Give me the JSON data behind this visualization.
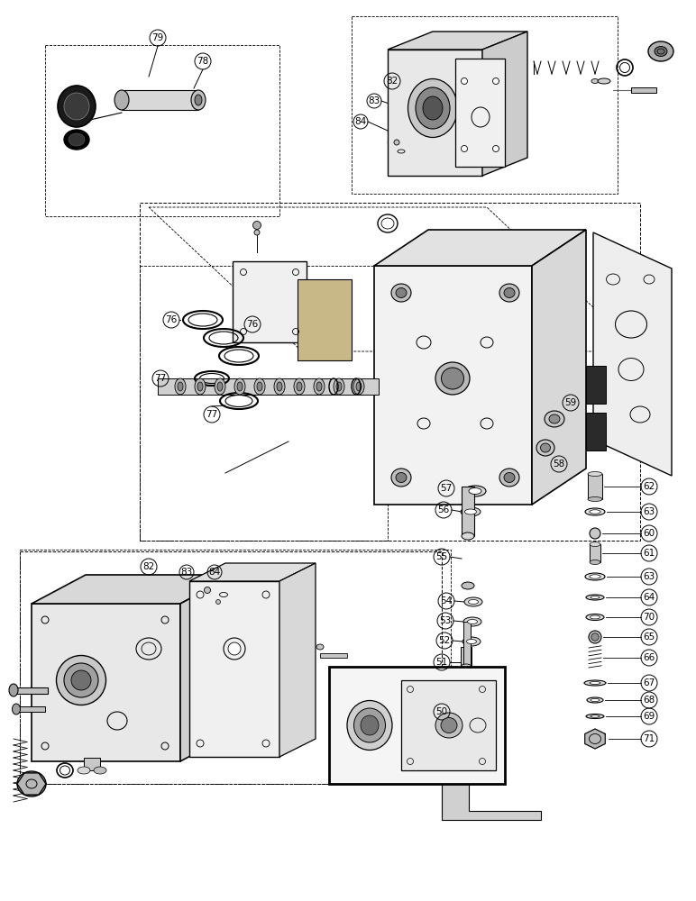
{
  "background_color": "#ffffff",
  "line_color": "#000000",
  "fig_width": 7.72,
  "fig_height": 10.0,
  "dpi": 100
}
